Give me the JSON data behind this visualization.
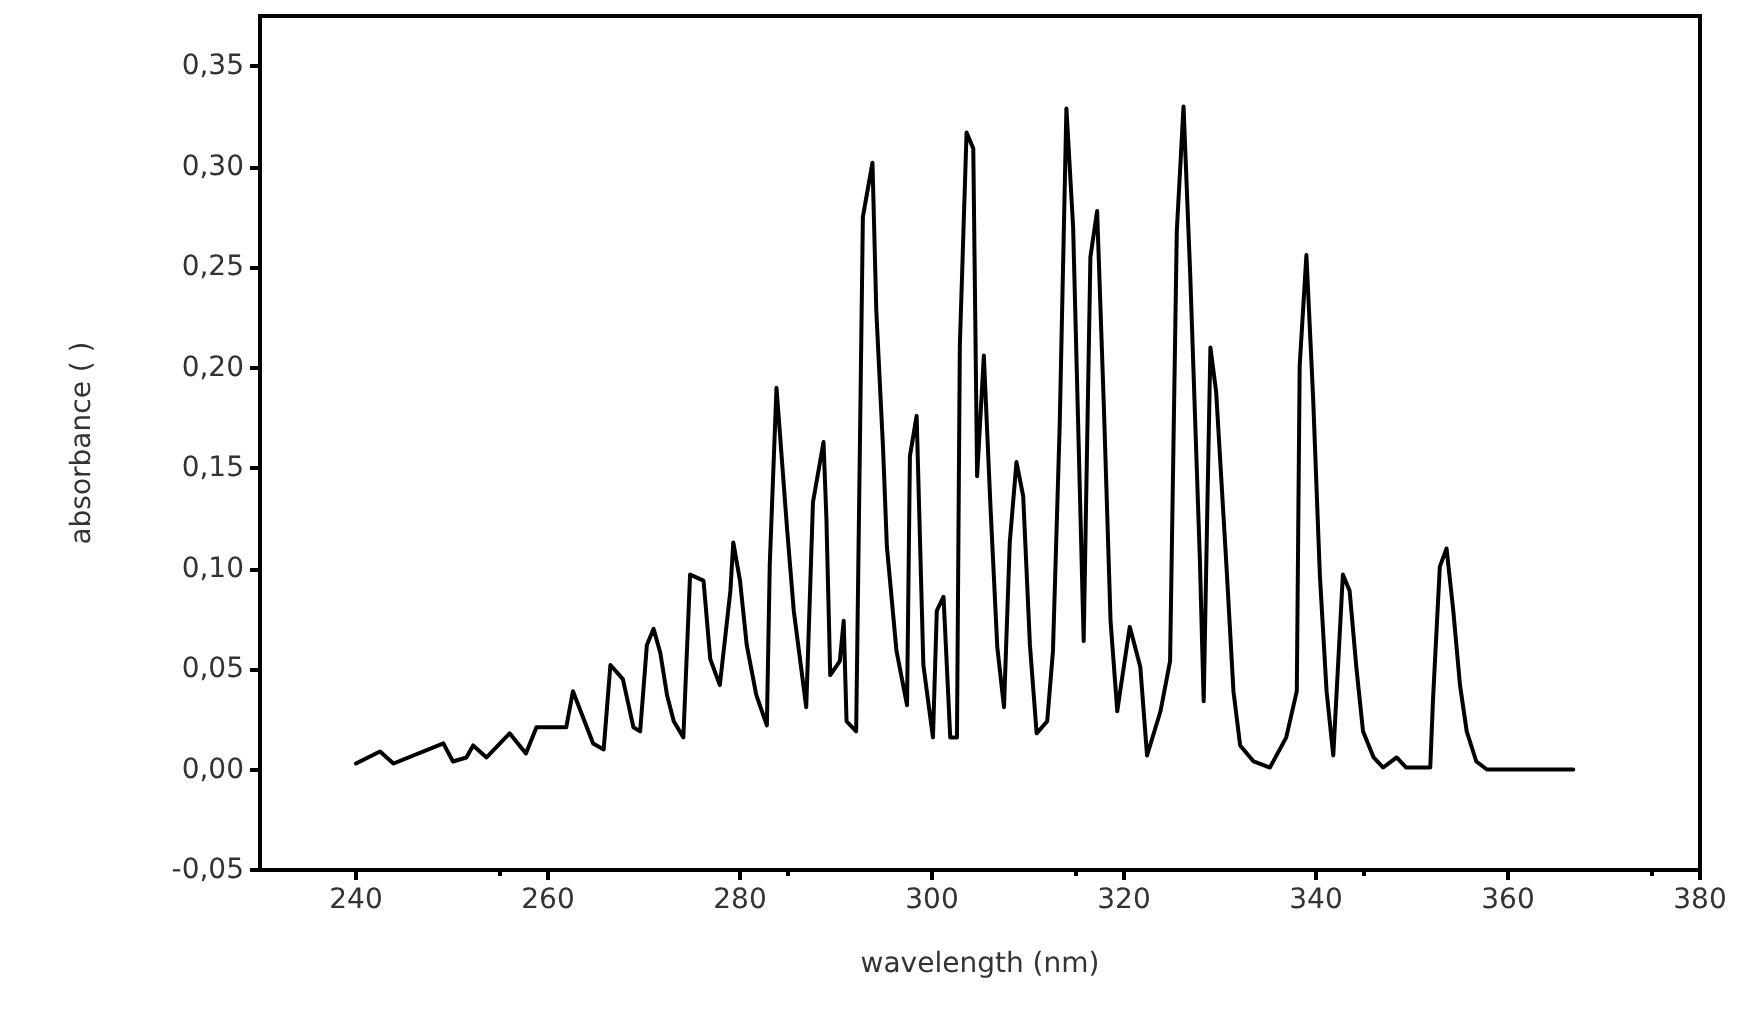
{
  "chart_data": {
    "type": "line",
    "xlabel": "wavelength (nm)",
    "ylabel": "absorbance ( )",
    "xlim": [
      230,
      380
    ],
    "xticks": [
      240,
      260,
      280,
      300,
      320,
      340,
      360,
      380
    ],
    "ylim": [
      -0.05,
      0.375
    ],
    "yticks": [
      {
        "value": -0.05,
        "label": "-0,05"
      },
      {
        "value": 0,
        "label": "0,00"
      },
      {
        "value": 0.05,
        "label": "0,05"
      },
      {
        "value": 0.1,
        "label": "0,10"
      },
      {
        "value": 0.15,
        "label": "0,15"
      },
      {
        "value": 0.2,
        "label": "0,20"
      },
      {
        "value": 0.25,
        "label": "0,25"
      },
      {
        "value": 0.3,
        "label": "0,30"
      },
      {
        "value": 0.35,
        "label": "0,35"
      }
    ],
    "grid": false,
    "marker": "none",
    "line_style": "solid",
    "series": [
      {
        "color": "#000000",
        "x": [
          240,
          242.5,
          243.9,
          249.1,
          250.1,
          251.5,
          252.2,
          253.6,
          255,
          256,
          257.7,
          258.8,
          261.9,
          262.6,
          264.7,
          265.8,
          266.5,
          267.8,
          268.9,
          269.6,
          270.3,
          271,
          271.7,
          272.4,
          273.1,
          274.1,
          274.8,
          276.2,
          276.9,
          277.9,
          279,
          279.3,
          280,
          280.7,
          281.7,
          282.8,
          283.1,
          283.8,
          284.9,
          285.6,
          286.9,
          287.6,
          288.7,
          289,
          289.4,
          290.4,
          290.8,
          291.1,
          292.1,
          292.8,
          293.8,
          294.2,
          294.9,
          295.3,
          296.3,
          297.4,
          297.7,
          298.4,
          299.1,
          300.1,
          300.5,
          301.2,
          301.9,
          302.6,
          302.9,
          303.6,
          304.3,
          304.7,
          305.4,
          306.1,
          306.8,
          307.5,
          308.1,
          308.8,
          309.5,
          310.2,
          310.9,
          312,
          312.6,
          313.3,
          314,
          314.7,
          315.8,
          316.5,
          317.2,
          317.9,
          318.6,
          319.3,
          319.6,
          320.6,
          321.7,
          322.4,
          323.8,
          324.8,
          325.5,
          326.2,
          326.9,
          327.9,
          328.3,
          329,
          329.6,
          330.7,
          331.4,
          332.1,
          333.5,
          335.2,
          336.9,
          338,
          338.3,
          339,
          339.7,
          340.4,
          341.1,
          341.8,
          342.8,
          343.5,
          344.2,
          344.9,
          346,
          347,
          348.4,
          349.4,
          351.9,
          352.2,
          352.9,
          353.6,
          354.3,
          355,
          355.7,
          356.7,
          357.8,
          366.8
        ],
        "values": [
          0.003,
          0.009,
          0.003,
          0.013,
          0.004,
          0.006,
          0.012,
          0.006,
          0.013,
          0.018,
          0.008,
          0.021,
          0.021,
          0.039,
          0.013,
          0.01,
          0.052,
          0.045,
          0.021,
          0.019,
          0.062,
          0.07,
          0.058,
          0.037,
          0.024,
          0.016,
          0.097,
          0.094,
          0.055,
          0.042,
          0.089,
          0.113,
          0.094,
          0.062,
          0.037,
          0.022,
          0.102,
          0.19,
          0.12,
          0.079,
          0.031,
          0.133,
          0.163,
          0.125,
          0.047,
          0.054,
          0.074,
          0.024,
          0.019,
          0.275,
          0.302,
          0.228,
          0.16,
          0.111,
          0.059,
          0.032,
          0.156,
          0.176,
          0.052,
          0.016,
          0.079,
          0.086,
          0.016,
          0.016,
          0.211,
          0.317,
          0.309,
          0.146,
          0.206,
          0.13,
          0.061,
          0.031,
          0.113,
          0.153,
          0.136,
          0.062,
          0.018,
          0.024,
          0.059,
          0.171,
          0.329,
          0.27,
          0.064,
          0.255,
          0.278,
          0.181,
          0.074,
          0.029,
          0.039,
          0.071,
          0.051,
          0.007,
          0.029,
          0.054,
          0.268,
          0.33,
          0.246,
          0.105,
          0.034,
          0.21,
          0.188,
          0.099,
          0.039,
          0.012,
          0.004,
          0.001,
          0.016,
          0.039,
          0.201,
          0.256,
          0.185,
          0.097,
          0.039,
          0.007,
          0.097,
          0.089,
          0.051,
          0.019,
          0.006,
          0.001,
          0.006,
          0.001,
          0.001,
          0.036,
          0.101,
          0.11,
          0.079,
          0.042,
          0.019,
          0.004,
          0,
          0
        ]
      }
    ]
  }
}
